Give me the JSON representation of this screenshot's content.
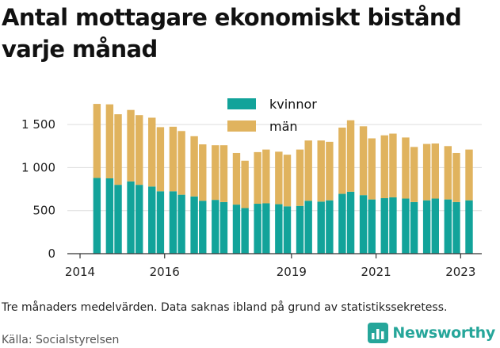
{
  "title": "Antal mottagare ekonomiskt bistånd varje månad",
  "note": "Tre månaders medelvärden. Data saknas ibland på grund av statistikssekretess.",
  "source": "Källa: Socialstyrelsen",
  "brand": {
    "name": "Newsworthy",
    "logo_icon": "bar-chart-logo-icon"
  },
  "colors": {
    "kvinnor": "#12a39a",
    "man": "#e0b35e",
    "grid": "#dddddd",
    "axis": "#333333"
  },
  "chart_data": {
    "type": "bar",
    "stacked": true,
    "title": "Antal mottagare ekonomiskt bistånd varje månad",
    "x": [
      2014.4,
      2014.7,
      2014.9,
      2015.2,
      2015.4,
      2015.7,
      2015.9,
      2016.2,
      2016.4,
      2016.7,
      2016.9,
      2017.2,
      2017.4,
      2017.7,
      2017.9,
      2018.2,
      2018.4,
      2018.7,
      2018.9,
      2019.2,
      2019.4,
      2019.7,
      2019.9,
      2020.2,
      2020.4,
      2020.7,
      2020.9,
      2021.2,
      2021.4,
      2021.7,
      2021.9,
      2022.2,
      2022.4,
      2022.7,
      2022.9,
      2023.2
    ],
    "series": [
      {
        "name": "kvinnor",
        "values": [
          880,
          875,
          800,
          840,
          800,
          780,
          725,
          725,
          685,
          665,
          615,
          625,
          600,
          570,
          530,
          580,
          585,
          575,
          550,
          555,
          615,
          605,
          620,
          695,
          720,
          680,
          630,
          645,
          655,
          640,
          600,
          620,
          640,
          630,
          600,
          620
        ]
      },
      {
        "name": "män",
        "values": [
          860,
          860,
          820,
          830,
          810,
          800,
          745,
          750,
          740,
          700,
          655,
          635,
          660,
          600,
          550,
          600,
          625,
          610,
          600,
          655,
          700,
          710,
          680,
          770,
          830,
          800,
          710,
          730,
          740,
          710,
          640,
          655,
          640,
          620,
          570,
          590
        ]
      }
    ],
    "xticks": [
      "2014",
      "2016",
      "2019",
      "2021",
      "2023"
    ],
    "xtick_values": [
      2014,
      2016,
      2019,
      2021,
      2023
    ],
    "yticks": [
      "0",
      "500",
      "1 000",
      "1 500"
    ],
    "ytick_values": [
      0,
      500,
      1000,
      1500
    ],
    "ylim": [
      0,
      1750
    ],
    "xlim": [
      2013.7,
      2023.5
    ],
    "grid": true,
    "legend_position": "top-center"
  }
}
